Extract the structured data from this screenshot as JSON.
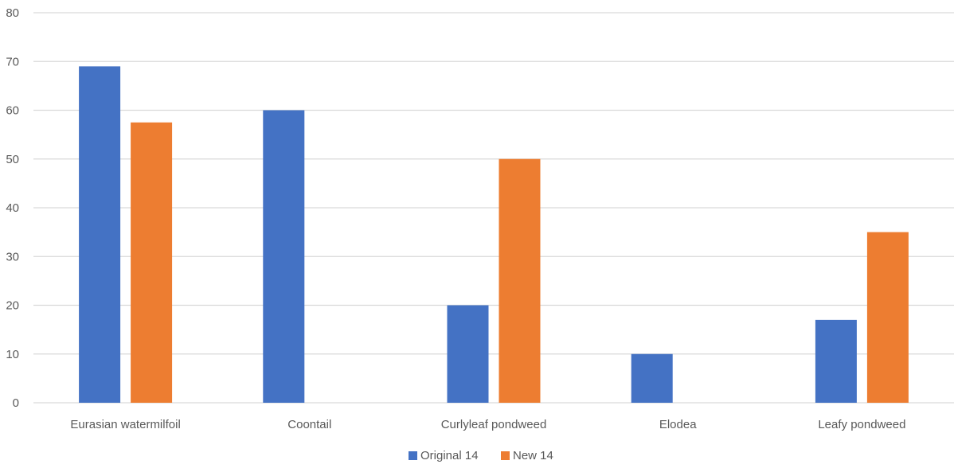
{
  "chart_data": {
    "type": "bar",
    "title": "",
    "xlabel": "",
    "ylabel": "",
    "categories": [
      "Eurasian watermilfoil",
      "Coontail",
      "Curlyleaf pondweed",
      "Elodea",
      "Leafy pondweed"
    ],
    "series": [
      {
        "name": "Original 14",
        "color": "#4472C4",
        "values": [
          69,
          60,
          20,
          10,
          17
        ]
      },
      {
        "name": "New 14",
        "color": "#ED7D31",
        "values": [
          57.5,
          0,
          50,
          0,
          35
        ]
      }
    ],
    "ylim": [
      0,
      80
    ],
    "yticks": [
      0,
      10,
      20,
      30,
      40,
      50,
      60,
      70,
      80
    ],
    "grid": true,
    "legend_position": "bottom"
  }
}
